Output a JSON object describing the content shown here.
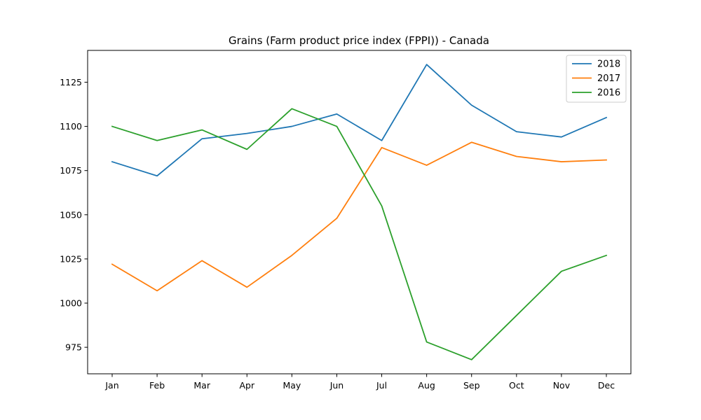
{
  "chart_data": {
    "type": "line",
    "title": "Grains (Farm product price index (FPPI)) - Canada",
    "xlabel": "",
    "ylabel": "",
    "categories": [
      "Jan",
      "Feb",
      "Mar",
      "Apr",
      "May",
      "Jun",
      "Jul",
      "Aug",
      "Sep",
      "Oct",
      "Nov",
      "Dec"
    ],
    "yticks": [
      975,
      1000,
      1025,
      1050,
      1075,
      1100,
      1125
    ],
    "ylim": [
      960,
      1143
    ],
    "grid": false,
    "legend_position": "top-right",
    "series": [
      {
        "name": "2018",
        "color": "#1f77b4",
        "values": [
          1080,
          1072,
          1093,
          1096,
          1100,
          1107,
          1092,
          1135,
          1112,
          1097,
          1094,
          1105
        ]
      },
      {
        "name": "2017",
        "color": "#ff7f0e",
        "values": [
          1022,
          1007,
          1024,
          1009,
          1027,
          1048,
          1088,
          1078,
          1091,
          1083,
          1080,
          1081
        ]
      },
      {
        "name": "2016",
        "color": "#2ca02c",
        "values": [
          1100,
          1092,
          1098,
          1087,
          1110,
          1100,
          1055,
          978,
          968,
          993,
          1018,
          1027
        ]
      }
    ]
  }
}
